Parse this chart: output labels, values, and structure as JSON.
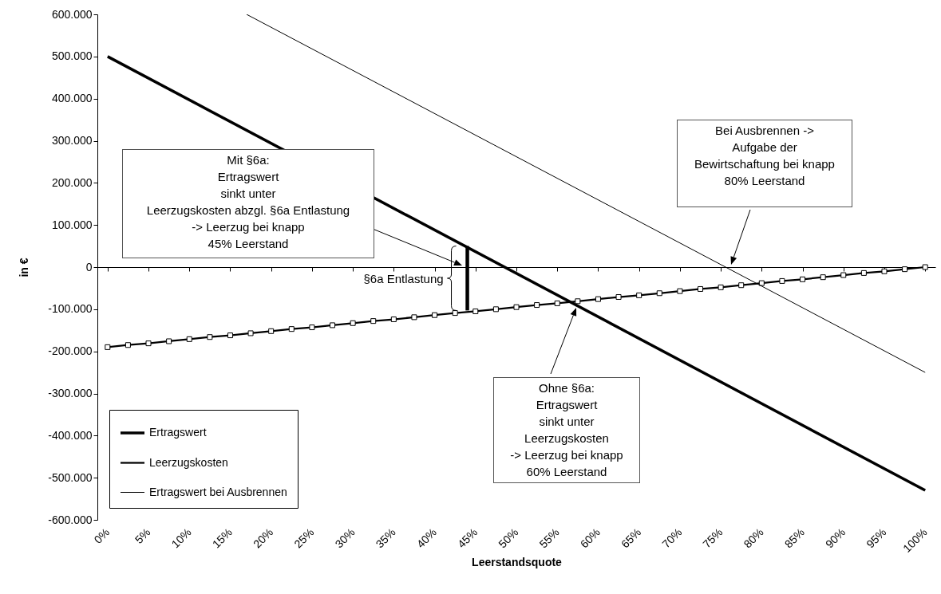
{
  "chart_data": {
    "type": "line",
    "xlabel": "Leerstandsquote",
    "ylabel": "in €",
    "legend": "bottom left",
    "xlim": [
      -1.25,
      101.25
    ],
    "xticks": [
      {
        "value": 0,
        "label": "0%"
      },
      {
        "value": 5,
        "label": "5%"
      },
      {
        "value": 10,
        "label": "10%"
      },
      {
        "value": 15,
        "label": "15%"
      },
      {
        "value": 20,
        "label": "20%"
      },
      {
        "value": 25,
        "label": "25%"
      },
      {
        "value": 30,
        "label": "30%"
      },
      {
        "value": 35,
        "label": "35%"
      },
      {
        "value": 40,
        "label": "40%"
      },
      {
        "value": 45,
        "label": "45%"
      },
      {
        "value": 50,
        "label": "50%"
      },
      {
        "value": 55,
        "label": "55%"
      },
      {
        "value": 60,
        "label": "60%"
      },
      {
        "value": 65,
        "label": "65%"
      },
      {
        "value": 70,
        "label": "70%"
      },
      {
        "value": 75,
        "label": "75%"
      },
      {
        "value": 80,
        "label": "80%"
      },
      {
        "value": 85,
        "label": "85%"
      },
      {
        "value": 90,
        "label": "90%"
      },
      {
        "value": 95,
        "label": "95%"
      },
      {
        "value": 100,
        "label": "100%"
      }
    ],
    "ylim": [
      -600000,
      600000
    ],
    "yticks": [
      {
        "value": -600000,
        "label": "-600.000"
      },
      {
        "value": -500000,
        "label": "-500.000"
      },
      {
        "value": -400000,
        "label": "-400.000"
      },
      {
        "value": -300000,
        "label": "-300.000"
      },
      {
        "value": -200000,
        "label": "-200.000"
      },
      {
        "value": -100000,
        "label": "-100.000"
      },
      0,
      {
        "value": 100000,
        "label": "100.000"
      },
      {
        "value": 200000,
        "label": "200.000"
      },
      {
        "value": 300000,
        "label": "300.000"
      },
      {
        "value": 400000,
        "label": "400.000"
      },
      {
        "value": 500000,
        "label": "500.000"
      },
      {
        "value": 600000,
        "label": "600.000"
      }
    ],
    "series": [
      {
        "name": "Ertragswert",
        "color": "#000000",
        "x": [
          0,
          100
        ],
        "values": [
          500000,
          -530000
        ]
      },
      {
        "name": "Leerzugskosten",
        "color": "#000000",
        "marker": "square",
        "x": [
          0,
          2.5,
          5,
          7.5,
          10,
          12.5,
          15,
          17.5,
          20,
          22.5,
          25,
          27.5,
          30,
          32.5,
          35,
          37.5,
          40,
          42.5,
          45,
          47.5,
          50,
          52.5,
          55,
          57.5,
          60,
          62.5,
          65,
          67.5,
          70,
          72.5,
          75,
          77.5,
          80,
          82.5,
          85,
          87.5,
          90,
          92.5,
          95,
          97.5,
          100
        ],
        "values": [
          -190000,
          -185000,
          -181000,
          -176000,
          -171000,
          -166000,
          -162000,
          -157000,
          -152000,
          -147000,
          -143000,
          -138000,
          -133000,
          -128000,
          -124000,
          -119000,
          -114000,
          -109000,
          -105000,
          -100000,
          -95000,
          -90000,
          -86000,
          -81000,
          -76000,
          -71000,
          -67000,
          -62000,
          -57000,
          -52000,
          -48000,
          -43000,
          -38000,
          -33000,
          -29000,
          -24000,
          -19000,
          -14000,
          -10000,
          -5000,
          0
        ]
      },
      {
        "name": "Ertragswert bei Ausbrennen",
        "color": "#000000",
        "x": [
          17,
          100
        ],
        "values": [
          600000,
          -250000
        ]
      },
      {
        "color": "#000000",
        "x": [
          44,
          44
        ],
        "values": [
          50000,
          -103000
        ]
      }
    ],
    "annotations": [
      "Mit §6a:\nErtragswert\nsinkt unter\nLeerzugskosten abzgl. §6a Entlastung\n-> Leerzug bei knapp\n45% Leerstand",
      "Ohne §6a:\nErtragswert\nsinkt unter\nLeerzugskosten\n-> Leerzug bei knapp\n60% Leerstand",
      "Bei Ausbrennen ->\nAufgabe der\nBewirtschaftung bei knapp\n80% Leerstand",
      "§6a Entlastung"
    ]
  }
}
